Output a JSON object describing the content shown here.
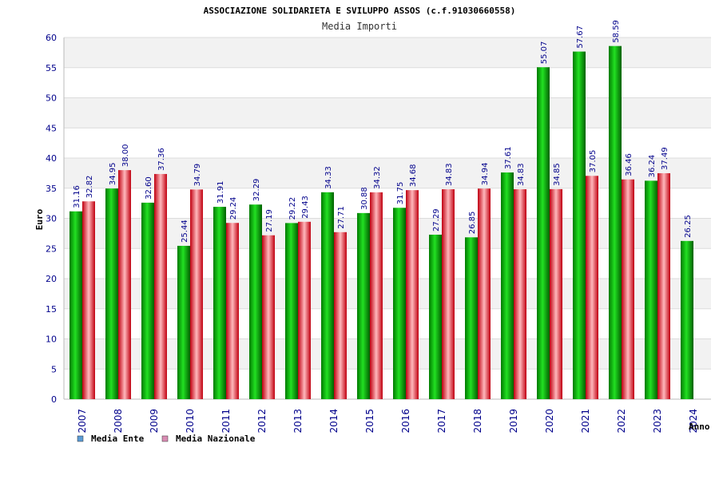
{
  "chart_data": {
    "type": "bar",
    "title": "ASSOCIAZIONE SOLIDARIETA E SVILUPPO ASSOS (c.f.91030660558)",
    "subtitle": "Media Importi",
    "xlabel": "Anno",
    "ylabel": "Euro",
    "ylim": [
      0,
      60
    ],
    "yticks": [
      0,
      5,
      10,
      15,
      20,
      25,
      30,
      35,
      40,
      45,
      50,
      55,
      60
    ],
    "categories": [
      "2007",
      "2008",
      "2009",
      "2010",
      "2011",
      "2012",
      "2013",
      "2014",
      "2015",
      "2016",
      "2017",
      "2018",
      "2019",
      "2020",
      "2021",
      "2022",
      "2023",
      "2024"
    ],
    "series": [
      {
        "name": "Media Ente",
        "color": "#00b000",
        "legend_color": "#5b9bd5",
        "values": [
          31.16,
          34.95,
          32.6,
          25.44,
          31.91,
          32.29,
          29.22,
          34.33,
          30.88,
          31.75,
          27.29,
          26.85,
          37.61,
          55.07,
          57.67,
          58.59,
          36.24,
          26.25
        ],
        "labels": [
          "31.16",
          "34.95",
          "32.60",
          "25.44",
          "31.91",
          "32.29",
          "29.22",
          "34.33",
          "30.88",
          "31.75",
          "27.29",
          "26.85",
          "37.61",
          "55.07",
          "57.67",
          "58.59",
          "36.24",
          "26.25"
        ]
      },
      {
        "name": "Media Nazionale",
        "color": "#e0202a",
        "legend_color": "#d98cb3",
        "values": [
          32.82,
          38.0,
          37.36,
          34.79,
          29.24,
          27.19,
          29.43,
          27.71,
          34.32,
          34.68,
          34.83,
          34.94,
          34.83,
          34.85,
          37.05,
          36.46,
          37.49,
          null
        ],
        "labels": [
          "32.82",
          "38.00",
          "37.36",
          "34.79",
          "29.24",
          "27.19",
          "29.43",
          "27.71",
          "34.32",
          "34.68",
          "34.83",
          "34.94",
          "34.83",
          "34.85",
          "37.05",
          "36.46",
          "37.49",
          null
        ]
      }
    ],
    "grid": true,
    "legend": "bottom-left"
  }
}
